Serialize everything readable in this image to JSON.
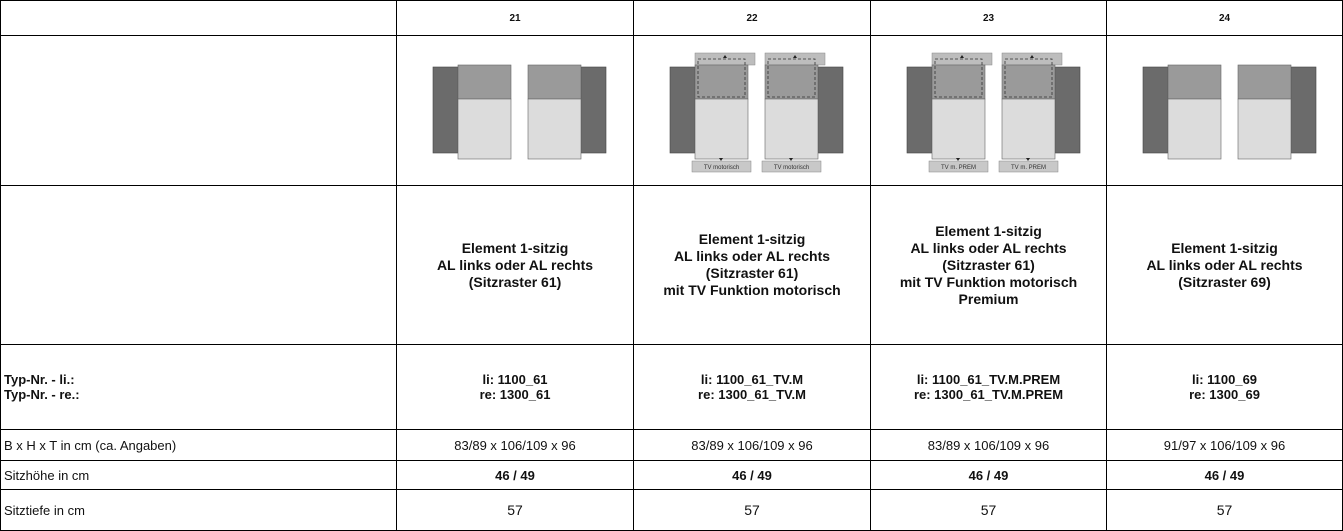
{
  "table": {
    "columns": [
      "21",
      "22",
      "23",
      "24"
    ],
    "diagram_labels": {
      "22": "TV motorisch",
      "23": "TV m. PREM"
    },
    "descriptions": [
      [
        "Element 1-sitzig",
        "AL links oder AL rechts",
        "(Sitzraster 61)"
      ],
      [
        "Element 1-sitzig",
        "AL links oder AL rechts",
        "(Sitzraster 61)",
        "mit TV Funktion motorisch"
      ],
      [
        "Element 1-sitzig",
        "AL links oder AL rechts",
        "(Sitzraster 61)",
        "mit TV Funktion motorisch",
        "Premium"
      ],
      [
        "Element 1-sitzig",
        "AL links oder AL rechts",
        "(Sitzraster 69)"
      ]
    ],
    "type_row": {
      "labels": [
        "Typ-Nr. - li.:",
        "Typ-Nr. - re.:"
      ],
      "values": [
        [
          "li: 1100_61",
          "re: 1300_61"
        ],
        [
          "li: 1100_61_TV.M",
          "re: 1300_61_TV.M"
        ],
        [
          "li: 1100_61_TV.M.PREM",
          "re: 1300_61_TV.M.PREM"
        ],
        [
          "li: 1100_69",
          "re: 1300_69"
        ]
      ]
    },
    "rows": [
      {
        "label": "B x H x T in cm (ca. Angaben)",
        "values": [
          "83/89 x 106/109 x 96",
          "83/89 x 106/109 x 96",
          "83/89 x 106/109 x 96",
          "91/97 x 106/109 x 96"
        ]
      },
      {
        "label": "Sitzhöhe in cm",
        "values": [
          "46 / 49",
          "46 / 49",
          "46 / 49",
          "46 / 49"
        ]
      },
      {
        "label": "Sitztiefe in cm",
        "values": [
          "57",
          "57",
          "57",
          "57"
        ]
      }
    ]
  }
}
